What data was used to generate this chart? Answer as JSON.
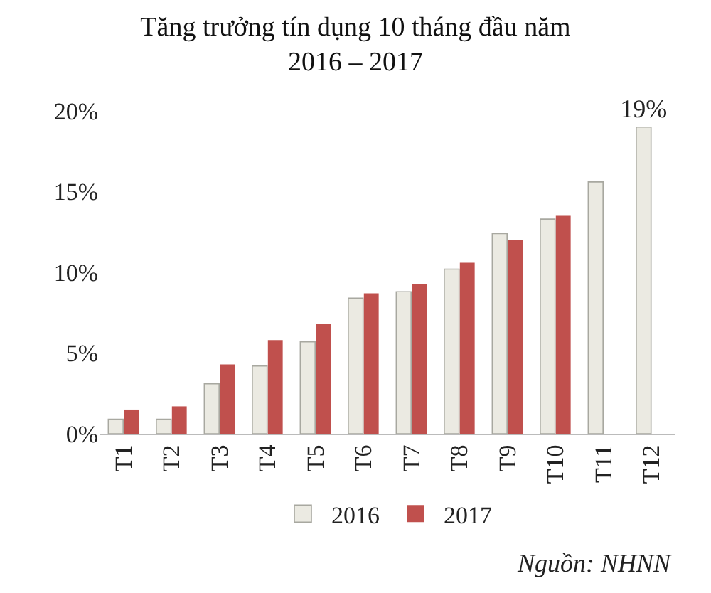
{
  "chart_data": {
    "type": "bar",
    "title": "Tăng trưởng tín dụng 10 tháng đầu năm 2016 – 2017",
    "categories": [
      "T1",
      "T2",
      "T3",
      "T4",
      "T5",
      "T6",
      "T7",
      "T8",
      "T9",
      "T10",
      "T11",
      "T12"
    ],
    "series": [
      {
        "name": "2016",
        "color": "#ebeae2",
        "values": [
          0.9,
          0.9,
          3.1,
          4.2,
          5.7,
          8.4,
          8.8,
          10.2,
          12.4,
          13.3,
          15.6,
          19
        ],
        "value_labels": [
          null,
          null,
          null,
          null,
          null,
          null,
          null,
          null,
          null,
          null,
          null,
          "19%"
        ]
      },
      {
        "name": "2017",
        "color": "#c0504d",
        "values": [
          1.5,
          1.7,
          4.3,
          5.8,
          6.8,
          8.7,
          9.3,
          10.6,
          12.0,
          13.5,
          null,
          null
        ]
      }
    ],
    "ylim": [
      0,
      20
    ],
    "yticks": [
      {
        "value": 0,
        "label": "0%"
      },
      {
        "value": 5,
        "label": "5%"
      },
      {
        "value": 10,
        "label": "10%"
      },
      {
        "value": 15,
        "label": "15%"
      },
      {
        "value": 20,
        "label": "20%"
      }
    ],
    "legend": "bottom",
    "annotations": [
      "Nguồn: NHNN"
    ]
  }
}
